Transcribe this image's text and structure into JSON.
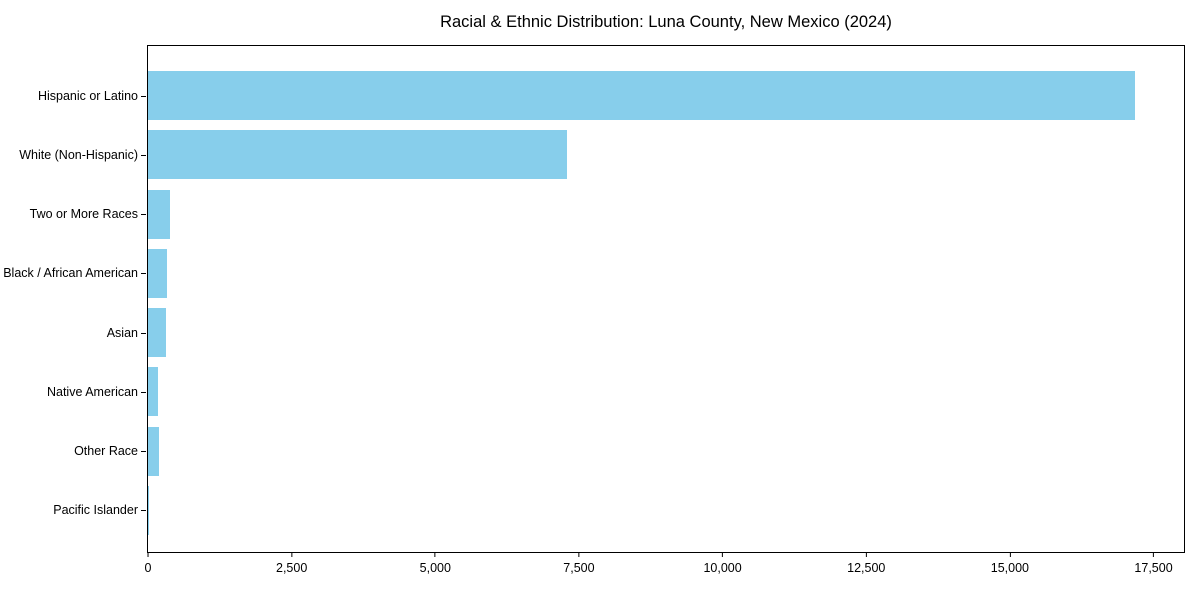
{
  "chart_data": {
    "type": "bar",
    "orientation": "horizontal",
    "title": "Racial & Ethnic Distribution: Luna County, New Mexico (2024)",
    "categories": [
      "Hispanic or Latino",
      "White (Non-Hispanic)",
      "Two or More Races",
      "Black / African American",
      "Asian",
      "Native American",
      "Other Race",
      "Pacific Islander"
    ],
    "values": [
      17170,
      7290,
      380,
      330,
      310,
      170,
      190,
      15
    ],
    "xlabel": "",
    "ylabel": "",
    "xlim": [
      0,
      18030
    ],
    "x_ticks": [
      0,
      2500,
      5000,
      7500,
      10000,
      12500,
      15000,
      17500
    ],
    "x_tick_labels": [
      "0",
      "2,500",
      "5,000",
      "7,500",
      "10,000",
      "12,500",
      "15,000",
      "17,500"
    ],
    "bar_color": "#87CEEB",
    "axis_color": "#000000",
    "grid": false,
    "legend": null
  }
}
